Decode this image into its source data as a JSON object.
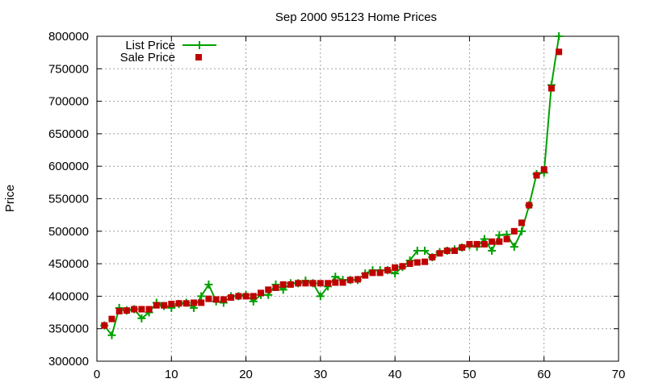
{
  "chart_data": {
    "type": "line",
    "title": "Sep 2000 95123 Home Prices",
    "xlabel": "",
    "ylabel": "Price",
    "xlim": [
      0,
      70
    ],
    "ylim": [
      300000,
      800000
    ],
    "xticks": [
      0,
      10,
      20,
      30,
      40,
      50,
      60,
      70
    ],
    "yticks": [
      300000,
      350000,
      400000,
      450000,
      500000,
      550000,
      600000,
      650000,
      700000,
      750000,
      800000
    ],
    "grid": true,
    "legend_position": "top-left",
    "colors": {
      "list": "#00a000",
      "sale": "#c00000"
    },
    "series": [
      {
        "name": "List Price",
        "style": "line-plus",
        "x": [
          1,
          2,
          3,
          4,
          5,
          6,
          7,
          8,
          9,
          10,
          11,
          12,
          13,
          14,
          15,
          16,
          17,
          18,
          19,
          20,
          21,
          22,
          23,
          24,
          25,
          26,
          27,
          28,
          29,
          30,
          31,
          32,
          33,
          34,
          35,
          36,
          37,
          38,
          39,
          40,
          41,
          42,
          43,
          44,
          45,
          46,
          47,
          48,
          49,
          50,
          51,
          52,
          53,
          54,
          55,
          56,
          57,
          58,
          59,
          60,
          61,
          62
        ],
        "values": [
          355000,
          340000,
          382000,
          378000,
          380000,
          366000,
          375000,
          390000,
          385000,
          382000,
          388000,
          390000,
          382000,
          400000,
          418000,
          392000,
          390000,
          400000,
          400000,
          402000,
          392000,
          402000,
          402000,
          418000,
          410000,
          420000,
          420000,
          424000,
          420000,
          400000,
          415000,
          430000,
          425000,
          425000,
          425000,
          435000,
          440000,
          440000,
          440000,
          435000,
          445000,
          455000,
          470000,
          470000,
          460000,
          468000,
          470000,
          472000,
          475000,
          478000,
          476000,
          488000,
          470000,
          494000,
          495000,
          476000,
          500000,
          540000,
          588000,
          590000,
          725000,
          800000
        ]
      },
      {
        "name": "Sale Price",
        "style": "points-square",
        "x": [
          1,
          2,
          3,
          4,
          5,
          6,
          7,
          8,
          9,
          10,
          11,
          12,
          13,
          14,
          15,
          16,
          17,
          18,
          19,
          20,
          21,
          22,
          23,
          24,
          25,
          26,
          27,
          28,
          29,
          30,
          31,
          32,
          33,
          34,
          35,
          36,
          37,
          38,
          39,
          40,
          41,
          42,
          43,
          44,
          45,
          46,
          47,
          48,
          49,
          50,
          51,
          52,
          53,
          54,
          55,
          56,
          57,
          58,
          59,
          60,
          61,
          62
        ],
        "values": [
          355000,
          365000,
          377000,
          378000,
          380000,
          380000,
          380000,
          386000,
          386000,
          388000,
          389000,
          389000,
          390000,
          390000,
          396000,
          395000,
          395000,
          398000,
          400000,
          400000,
          400000,
          405000,
          410000,
          413000,
          418000,
          418000,
          420000,
          420000,
          420000,
          420000,
          420000,
          421000,
          421000,
          425000,
          426000,
          432000,
          436000,
          436000,
          440000,
          444000,
          446000,
          450000,
          452000,
          453000,
          460000,
          466000,
          470000,
          470000,
          475000,
          480000,
          480000,
          480000,
          484000,
          484000,
          488000,
          500000,
          513000,
          540000,
          586000,
          595000,
          720000,
          776000
        ]
      }
    ]
  }
}
